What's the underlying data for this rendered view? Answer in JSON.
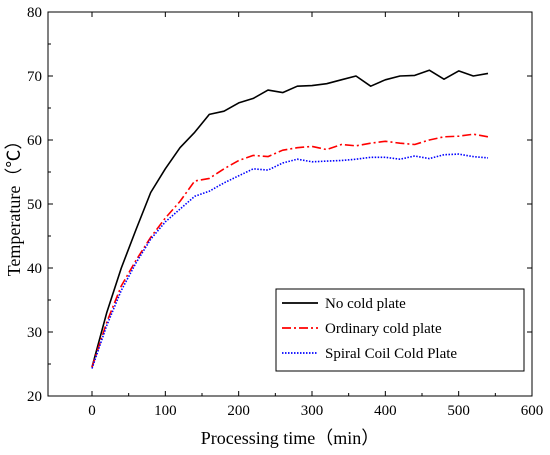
{
  "chart_data": {
    "type": "line",
    "title": "",
    "xlabel": "Processing time（min）",
    "ylabel": "Temperature（℃）",
    "xlim": [
      -60,
      600
    ],
    "ylim": [
      20,
      80
    ],
    "xticks": [
      0,
      100,
      200,
      300,
      400,
      500,
      600
    ],
    "yticks": [
      20,
      30,
      40,
      50,
      60,
      70,
      80
    ],
    "grid": false,
    "legend_position": "bottom-right",
    "series": [
      {
        "name": "No cold plate",
        "color": "#000000",
        "style": "solid",
        "x": [
          0,
          20,
          40,
          60,
          80,
          100,
          120,
          140,
          160,
          180,
          200,
          220,
          240,
          260,
          280,
          300,
          320,
          340,
          360,
          380,
          400,
          420,
          440,
          460,
          480,
          500,
          520,
          540
        ],
        "y": [
          24.5,
          33.0,
          40.0,
          46.0,
          51.8,
          55.5,
          58.8,
          61.2,
          64.0,
          64.5,
          65.8,
          66.5,
          67.8,
          67.4,
          68.4,
          68.5,
          68.8,
          69.4,
          70.0,
          68.4,
          69.4,
          70.0,
          70.1,
          70.9,
          69.5,
          70.8,
          70.0,
          70.4
        ]
      },
      {
        "name": "Ordinary cold plate",
        "color": "#ff0000",
        "style": "dash-dot",
        "x": [
          0,
          20,
          40,
          60,
          80,
          100,
          120,
          140,
          160,
          180,
          200,
          220,
          240,
          260,
          280,
          300,
          320,
          340,
          360,
          380,
          400,
          420,
          440,
          460,
          480,
          500,
          520,
          540
        ],
        "y": [
          24.5,
          31.5,
          37.2,
          41.2,
          44.8,
          47.8,
          50.4,
          53.6,
          54.0,
          55.5,
          56.8,
          57.6,
          57.4,
          58.4,
          58.8,
          59.0,
          58.5,
          59.3,
          59.1,
          59.5,
          59.8,
          59.5,
          59.3,
          60.0,
          60.5,
          60.6,
          60.9,
          60.5
        ]
      },
      {
        "name": "Spiral Coil Cold Plate",
        "color": "#0000ff",
        "style": "dotted",
        "x": [
          0,
          20,
          40,
          60,
          80,
          100,
          120,
          140,
          160,
          180,
          200,
          220,
          240,
          260,
          280,
          300,
          320,
          340,
          360,
          380,
          400,
          420,
          440,
          460,
          480,
          500,
          520,
          540
        ],
        "y": [
          24.3,
          31.0,
          36.5,
          40.8,
          44.5,
          47.2,
          49.2,
          51.2,
          52.0,
          53.3,
          54.4,
          55.5,
          55.3,
          56.4,
          57.0,
          56.6,
          56.7,
          56.8,
          57.0,
          57.3,
          57.3,
          57.0,
          57.5,
          57.1,
          57.7,
          57.8,
          57.4,
          57.2
        ]
      }
    ]
  }
}
